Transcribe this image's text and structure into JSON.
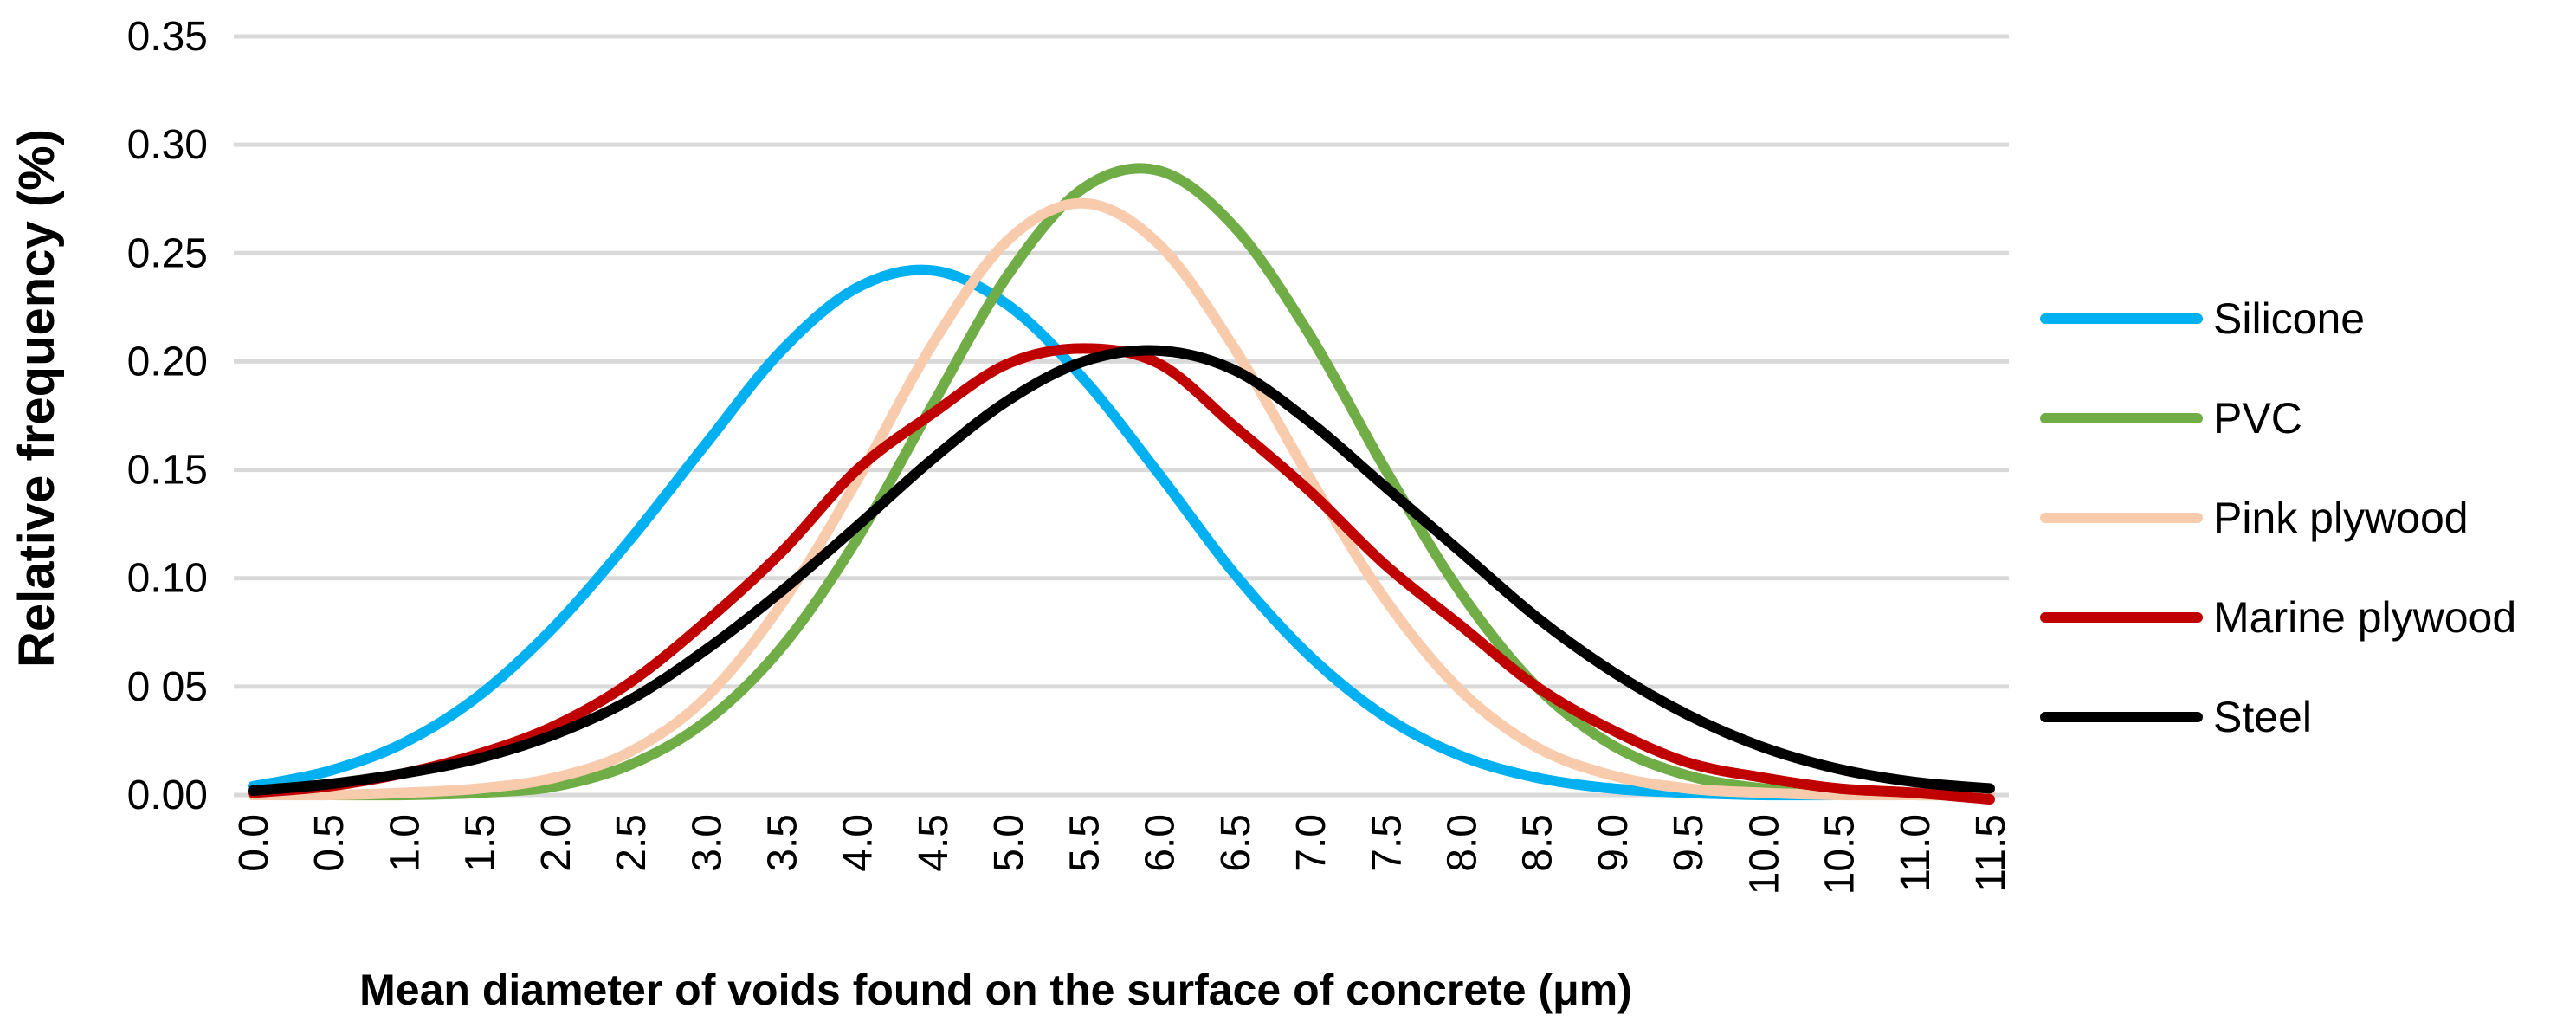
{
  "chart_data": {
    "type": "line",
    "title": "",
    "xlabel": "Mean diameter of voids found on the surface of concrete (μm)",
    "ylabel": "Relative frequency (%)",
    "xlim": [
      0,
      11.5
    ],
    "ylim": [
      0,
      0.35
    ],
    "grid": true,
    "legend_position": "right",
    "x": [
      0.0,
      0.5,
      1.0,
      1.5,
      2.0,
      2.5,
      3.0,
      3.5,
      4.0,
      4.5,
      5.0,
      5.5,
      6.0,
      6.5,
      7.0,
      7.5,
      8.0,
      8.5,
      9.0,
      9.5,
      10.0,
      10.5,
      11.0,
      11.5
    ],
    "x_tick_labels": [
      "0.0",
      "0.5",
      "1.0",
      "1.5",
      "2.0",
      "2.5",
      "3.0",
      "3.5",
      "4.0",
      "4.5",
      "5.0",
      "5.5",
      "6.0",
      "6.5",
      "7.0",
      "7.5",
      "8.0",
      "8.5",
      "9.0",
      "9.5",
      "10.0",
      "10.5",
      "11.0",
      "11.5"
    ],
    "y_ticks": [
      0,
      0.05,
      0.1,
      0.15,
      0.2,
      0.25,
      0.3,
      0.35
    ],
    "y_tick_labels": [
      "0.00",
      "0 05",
      "0.10",
      "0.15",
      "0.20",
      "0.25",
      "0.30",
      "0.35"
    ],
    "series": [
      {
        "name": "Silicone",
        "color": "#00b0f0",
        "values": [
          0.004,
          0.011,
          0.024,
          0.046,
          0.078,
          0.118,
          0.162,
          0.205,
          0.234,
          0.242,
          0.226,
          0.192,
          0.148,
          0.102,
          0.064,
          0.036,
          0.018,
          0.008,
          0.003,
          0.001,
          0.0,
          0.0,
          0.0,
          0.0
        ]
      },
      {
        "name": "PVC",
        "color": "#70ad47",
        "values": [
          0.0,
          0.0,
          0.0,
          0.001,
          0.004,
          0.014,
          0.034,
          0.068,
          0.118,
          0.18,
          0.24,
          0.28,
          0.288,
          0.262,
          0.212,
          0.15,
          0.093,
          0.05,
          0.023,
          0.009,
          0.003,
          0.001,
          0.0,
          0.0
        ]
      },
      {
        "name": "Pink plywood",
        "color": "#f8cbad",
        "values": [
          0.0,
          0.0,
          0.001,
          0.003,
          0.008,
          0.02,
          0.045,
          0.088,
          0.145,
          0.208,
          0.256,
          0.273,
          0.254,
          0.206,
          0.146,
          0.09,
          0.048,
          0.022,
          0.009,
          0.003,
          0.001,
          0.0,
          0.0,
          0.0
        ]
      },
      {
        "name": "Marine plywood",
        "color": "#c00000",
        "values": [
          0.001,
          0.004,
          0.01,
          0.019,
          0.032,
          0.052,
          0.08,
          0.112,
          0.15,
          0.176,
          0.199,
          0.206,
          0.199,
          0.17,
          0.14,
          0.106,
          0.078,
          0.05,
          0.03,
          0.015,
          0.008,
          0.003,
          0.001,
          -0.002
        ]
      },
      {
        "name": "Steel",
        "color": "#000000",
        "values": [
          0.002,
          0.005,
          0.01,
          0.017,
          0.028,
          0.044,
          0.067,
          0.094,
          0.124,
          0.155,
          0.182,
          0.2,
          0.205,
          0.196,
          0.172,
          0.142,
          0.112,
          0.082,
          0.057,
          0.037,
          0.022,
          0.012,
          0.006,
          0.003
        ]
      }
    ]
  }
}
